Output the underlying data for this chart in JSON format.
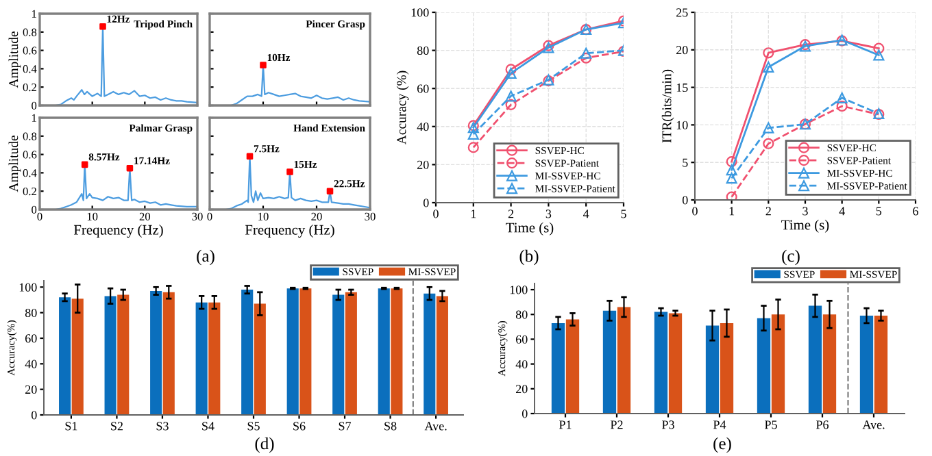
{
  "chart_data": [
    {
      "type": "line",
      "title": "Tripod Pinch",
      "ylabel": "Amplitude",
      "xlim": [
        0,
        30
      ],
      "xticks": [
        0,
        10,
        20,
        30
      ],
      "ylim": [
        0,
        1
      ],
      "yticks": [
        0,
        0.2,
        0.4,
        0.6,
        0.8,
        1
      ],
      "tick_labels": "y",
      "series": [
        {
          "color": "#4d9de0",
          "x": [
            0,
            3,
            4,
            5,
            6,
            6.5,
            7,
            8,
            8.5,
            9,
            10,
            11,
            11.7,
            12,
            12.3,
            13,
            14,
            15,
            16,
            17,
            18,
            19,
            20,
            21,
            22,
            23,
            24,
            25,
            26,
            27,
            28,
            30
          ],
          "values": [
            0,
            0,
            0.01,
            0.05,
            0.08,
            0.06,
            0.1,
            0.17,
            0.12,
            0.15,
            0.1,
            0.13,
            0.1,
            0.86,
            0.1,
            0.12,
            0.15,
            0.12,
            0.14,
            0.12,
            0.16,
            0.1,
            0.11,
            0.08,
            0.09,
            0.06,
            0.08,
            0.06,
            0.05,
            0.05,
            0.04,
            0.03
          ]
        },
        {
          "type": "scatter",
          "marker": "square",
          "color": "#ff0000",
          "x": [
            12
          ],
          "values": [
            0.86
          ]
        }
      ],
      "annotations": [
        {
          "text": "12Hz",
          "x": 12,
          "y": 0.86
        }
      ]
    },
    {
      "type": "line",
      "title": "Pincer Grasp",
      "xlim": [
        0,
        30
      ],
      "xticks": [
        0,
        10,
        20,
        30
      ],
      "ylim": [
        0,
        1
      ],
      "yticks": [
        0,
        0.2,
        0.4,
        0.6,
        0.8,
        1
      ],
      "tick_labels": false,
      "series": [
        {
          "color": "#4d9de0",
          "x": [
            0,
            4,
            5,
            6,
            7,
            8,
            9,
            9.7,
            10,
            10.3,
            11,
            12,
            13,
            14,
            15,
            16,
            17,
            18,
            19,
            20,
            21,
            22,
            23,
            24,
            25,
            26,
            27,
            28,
            30
          ],
          "values": [
            0,
            0,
            0.02,
            0.06,
            0.1,
            0.1,
            0.12,
            0.1,
            0.44,
            0.12,
            0.14,
            0.12,
            0.1,
            0.11,
            0.12,
            0.13,
            0.1,
            0.09,
            0.08,
            0.11,
            0.08,
            0.07,
            0.08,
            0.09,
            0.06,
            0.08,
            0.06,
            0.05,
            0.04
          ]
        },
        {
          "type": "scatter",
          "marker": "square",
          "color": "#ff0000",
          "x": [
            10
          ],
          "values": [
            0.44
          ]
        }
      ],
      "annotations": [
        {
          "text": "10Hz",
          "x": 10,
          "y": 0.44
        }
      ]
    },
    {
      "type": "line",
      "title": "Palmar Grasp",
      "xlabel": "Frequency (Hz)",
      "ylabel": "Amplitude",
      "xlim": [
        0,
        30
      ],
      "xticks": [
        0,
        10,
        20,
        30
      ],
      "ylim": [
        0,
        1
      ],
      "yticks": [
        0,
        0.2,
        0.4,
        0.6,
        0.8,
        1
      ],
      "series": [
        {
          "color": "#4d9de0",
          "x": [
            0,
            3,
            4,
            5,
            6,
            7,
            8,
            8.3,
            8.57,
            8.9,
            9.5,
            10,
            11,
            12,
            13,
            14,
            15,
            16,
            16.8,
            17.14,
            17.5,
            18,
            19,
            20,
            21,
            22,
            23,
            24,
            25,
            26,
            28,
            30
          ],
          "values": [
            0,
            0,
            0.01,
            0.03,
            0.05,
            0.08,
            0.17,
            0.1,
            0.49,
            0.12,
            0.17,
            0.13,
            0.12,
            0.1,
            0.14,
            0.12,
            0.13,
            0.1,
            0.1,
            0.45,
            0.1,
            0.11,
            0.08,
            0.09,
            0.07,
            0.08,
            0.05,
            0.06,
            0.05,
            0.04,
            0.03,
            0.03
          ]
        },
        {
          "type": "scatter",
          "marker": "square",
          "color": "#ff0000",
          "x": [
            8.57,
            17.14
          ],
          "values": [
            0.49,
            0.45
          ]
        }
      ],
      "annotations": [
        {
          "text": "8.57Hz",
          "x": 8.57,
          "y": 0.49
        },
        {
          "text": "17.14Hz",
          "x": 17.14,
          "y": 0.45
        },
        "(a)"
      ]
    },
    {
      "type": "line",
      "title": "Hand Extension",
      "xlabel": "Frequency (Hz)",
      "xlim": [
        0,
        30
      ],
      "xticks": [
        0,
        10,
        20,
        30
      ],
      "ylim": [
        0,
        1
      ],
      "yticks": [
        0,
        0.2,
        0.4,
        0.6,
        0.8,
        1
      ],
      "tick_labels": "x",
      "series": [
        {
          "color": "#4d9de0",
          "x": [
            0,
            3,
            4,
            5,
            6,
            7,
            7.2,
            7.5,
            7.8,
            8.2,
            8.6,
            9,
            9.5,
            10,
            11,
            12,
            13,
            14,
            14.7,
            15,
            15.3,
            16,
            17,
            18,
            19,
            20,
            21,
            22.2,
            22.5,
            22.8,
            24,
            25,
            26,
            27,
            28,
            29,
            30
          ],
          "values": [
            0,
            0,
            0.01,
            0.04,
            0.06,
            0.1,
            0.08,
            0.58,
            0.15,
            0.08,
            0.2,
            0.1,
            0.18,
            0.12,
            0.13,
            0.12,
            0.14,
            0.12,
            0.13,
            0.41,
            0.13,
            0.1,
            0.12,
            0.1,
            0.09,
            0.1,
            0.08,
            0.08,
            0.2,
            0.08,
            0.07,
            0.06,
            0.06,
            0.05,
            0.04,
            0.03,
            0.02
          ]
        },
        {
          "type": "scatter",
          "marker": "square",
          "color": "#ff0000",
          "x": [
            7.5,
            15,
            22.5
          ],
          "values": [
            0.58,
            0.41,
            0.2
          ]
        }
      ],
      "annotations": [
        {
          "text": "7.5Hz",
          "x": 7.5,
          "y": 0.58
        },
        {
          "text": "15Hz",
          "x": 15,
          "y": 0.41
        },
        {
          "text": "22.5Hz",
          "x": 22.5,
          "y": 0.2
        }
      ]
    },
    {
      "type": "line",
      "xlabel": "Time (s)",
      "ylabel": "Accuracy (%)",
      "xlim": [
        0,
        5
      ],
      "xticks": [
        0,
        1,
        2,
        3,
        4,
        5
      ],
      "ylim": [
        0,
        100
      ],
      "yticks": [
        0,
        20,
        40,
        60,
        80,
        100
      ],
      "grid": true,
      "legend": "bottom right",
      "x": [
        1,
        2,
        3,
        4,
        5
      ],
      "series": [
        {
          "name": "SSVEP-HC",
          "color": "#f0506e",
          "marker": "circle",
          "line_style": "solid",
          "values": [
            40.5,
            70,
            82.5,
            91,
            95.5
          ]
        },
        {
          "name": "SSVEP-Patient",
          "color": "#f0506e",
          "marker": "circle",
          "line_style": "dashed",
          "values": [
            29,
            51.5,
            64,
            76,
            79.5
          ]
        },
        {
          "name": "MI-SSVEP-HC",
          "color": "#3d9ae0",
          "marker": "triangle",
          "line_style": "solid",
          "values": [
            39.5,
            68,
            81.5,
            91,
            94.5
          ]
        },
        {
          "name": "MI-SSVEP-Patient",
          "color": "#3d9ae0",
          "marker": "triangle",
          "line_style": "dashed",
          "values": [
            36,
            56,
            64.5,
            78.5,
            80
          ]
        }
      ],
      "annotations": [
        "(b)"
      ]
    },
    {
      "type": "line",
      "xlabel": "Time (s)",
      "ylabel": "ITR(bits/min)",
      "xlim": [
        0,
        6
      ],
      "xticks": [
        0,
        1,
        2,
        3,
        4,
        5,
        6
      ],
      "ylim": [
        0,
        25
      ],
      "yticks": [
        0,
        5,
        10,
        15,
        20,
        25
      ],
      "grid": true,
      "legend": "bottom right",
      "x": [
        1,
        2,
        3,
        4,
        5
      ],
      "series": [
        {
          "name": "SSVEP-HC",
          "color": "#f0506e",
          "marker": "circle",
          "line_style": "solid",
          "values": [
            5.1,
            19.6,
            20.7,
            21.2,
            20.2
          ]
        },
        {
          "name": "SSVEP-Patient",
          "color": "#f0506e",
          "marker": "circle",
          "line_style": "dashed",
          "values": [
            0.4,
            7.5,
            10.1,
            12.5,
            11.4
          ]
        },
        {
          "name": "MI-SSVEP-HC",
          "color": "#3d9ae0",
          "marker": "triangle",
          "line_style": "solid",
          "values": [
            4.0,
            17.7,
            20.5,
            21.3,
            19.3
          ]
        },
        {
          "name": "MI-SSVEP-Patient",
          "color": "#3d9ae0",
          "marker": "triangle",
          "line_style": "dashed",
          "values": [
            2.9,
            9.6,
            10.1,
            13.6,
            11.5
          ]
        }
      ],
      "annotations": [
        "(c)"
      ]
    },
    {
      "type": "bar",
      "ylabel": "Accuracy(%)",
      "ylim": [
        0,
        105
      ],
      "yticks": [
        0,
        20,
        40,
        60,
        80,
        100
      ],
      "legend": "top right",
      "categories": [
        "S1",
        "S2",
        "S3",
        "S4",
        "S5",
        "S6",
        "S7",
        "S8",
        "Ave."
      ],
      "series": [
        {
          "name": "SSVEP",
          "color": "#0b6fbd",
          "values": [
            92,
            93,
            97,
            88,
            98,
            99,
            94,
            99,
            95
          ],
          "errors": [
            3,
            6,
            3,
            5,
            3,
            0.5,
            4,
            0.5,
            5
          ]
        },
        {
          "name": "MI-SSVEP",
          "color": "#d95319",
          "values": [
            91,
            94,
            96,
            88,
            87,
            99,
            96,
            99,
            93
          ],
          "errors": [
            11,
            4,
            5,
            5,
            9,
            0.5,
            2,
            0.5,
            4
          ]
        }
      ],
      "annotations": [
        "(d)"
      ]
    },
    {
      "type": "bar",
      "ylabel": "Accuracy(%)",
      "ylim": [
        0,
        105
      ],
      "yticks": [
        0,
        20,
        40,
        60,
        80,
        100
      ],
      "legend": "top right",
      "categories": [
        "P1",
        "P2",
        "P3",
        "P4",
        "P5",
        "P6",
        "Ave."
      ],
      "series": [
        {
          "name": "SSVEP",
          "color": "#0b6fbd",
          "values": [
            73,
            83,
            82,
            71,
            77,
            87,
            79
          ],
          "errors": [
            5,
            8,
            3,
            12,
            10,
            9,
            6
          ]
        },
        {
          "name": "MI-SSVEP",
          "color": "#d95319",
          "values": [
            76,
            86,
            81,
            73,
            80,
            80,
            79
          ],
          "errors": [
            5,
            8,
            2,
            11,
            12,
            11,
            4
          ]
        }
      ],
      "annotations": [
        "(e)"
      ]
    }
  ]
}
